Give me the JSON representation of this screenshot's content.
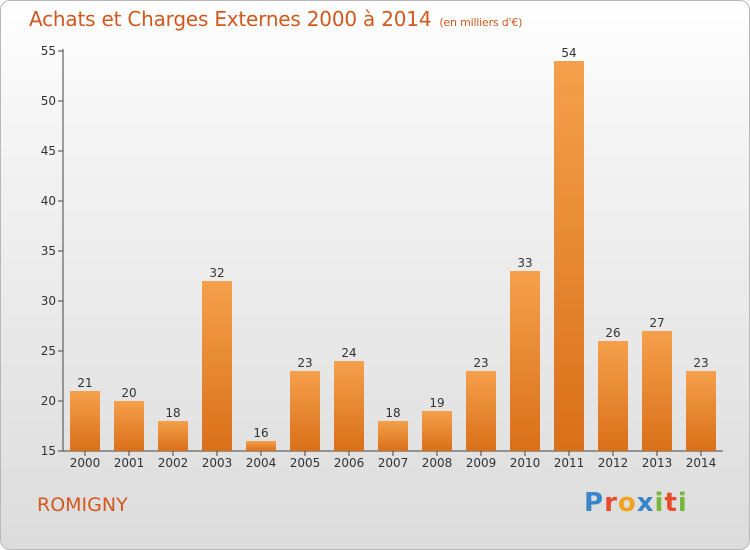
{
  "header": {
    "title": "Achats et Charges Externes 2000 à 2014",
    "subtitle": "(en milliers d'€)"
  },
  "footer": {
    "place": "ROMIGNY",
    "logo": "Proxiti"
  },
  "colors": {
    "title": "#d2581e",
    "bar_light": "#f5a04c",
    "bar_dark": "#d97018",
    "axis": "#444444"
  },
  "chart_data": {
    "type": "bar",
    "categories": [
      "2000",
      "2001",
      "2002",
      "2003",
      "2004",
      "2005",
      "2006",
      "2007",
      "2008",
      "2009",
      "2010",
      "2011",
      "2012",
      "2013",
      "2014"
    ],
    "values": [
      21,
      20,
      18,
      32,
      16,
      23,
      24,
      18,
      19,
      23,
      33,
      54,
      26,
      27,
      23
    ],
    "title": "Achats et Charges Externes 2000 à 2014",
    "ylim": [
      15,
      55
    ],
    "yticks": [
      15,
      20,
      25,
      30,
      35,
      40,
      45,
      50,
      55
    ],
    "grid": false,
    "data_labels": true
  }
}
